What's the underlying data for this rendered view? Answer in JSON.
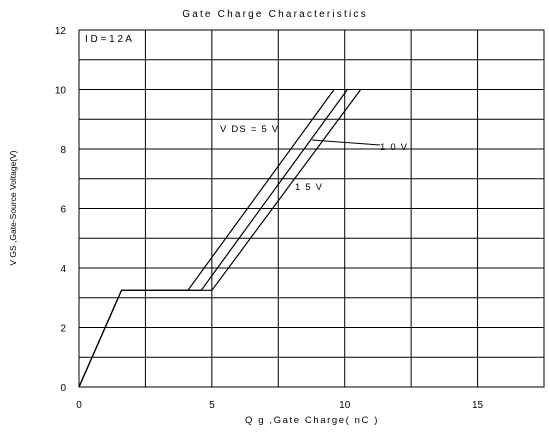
{
  "chart_data": {
    "type": "line",
    "title": "Gate Charge Characteristics",
    "xlabel": "Q g ,Gate Charge( nC )",
    "ylabel": "V GS ,Gate-Source Voltage(V)",
    "xlim": [
      0,
      17.5
    ],
    "ylim": [
      0,
      12
    ],
    "xticks": [
      "0",
      "5",
      "10",
      "15"
    ],
    "yticks": [
      "0",
      "2",
      "4",
      "6",
      "8",
      "10",
      "12"
    ],
    "grid": true,
    "condition": "I D = 1 2 A",
    "series": [
      {
        "name": "V DS = 5 V",
        "x": [
          0,
          1.6,
          4.1,
          9.6
        ],
        "y": [
          0,
          3.25,
          3.25,
          10
        ]
      },
      {
        "name": "1 0 V",
        "x": [
          0,
          1.6,
          4.6,
          10.1
        ],
        "y": [
          0,
          3.25,
          3.25,
          10
        ]
      },
      {
        "name": "1 5 V",
        "x": [
          0,
          1.6,
          5.0,
          10.6
        ],
        "y": [
          0,
          3.25,
          3.25,
          10
        ]
      }
    ],
    "annotations": [
      {
        "text": "V DS = 5 V"
      },
      {
        "text": "1 0 V"
      },
      {
        "text": "1 5 V"
      }
    ]
  }
}
